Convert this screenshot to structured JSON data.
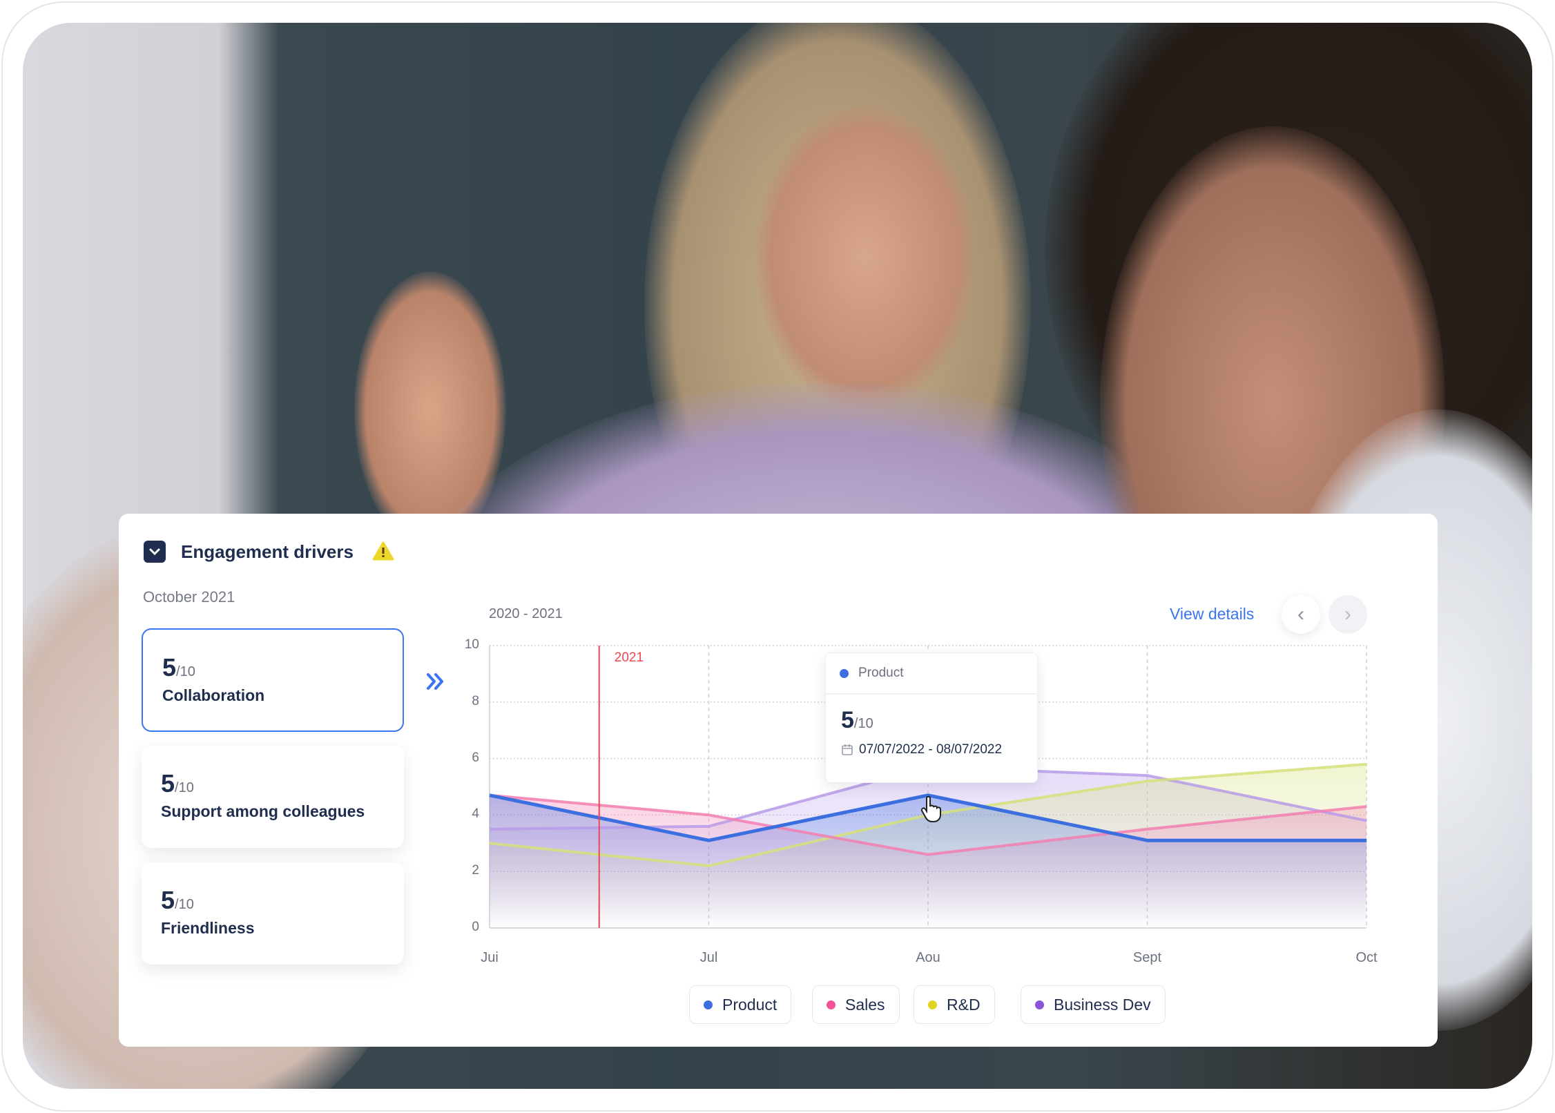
{
  "header": {
    "title": "Engagement drivers",
    "period": "October 2021"
  },
  "drivers": [
    {
      "score": "5",
      "max": "/10",
      "label": "Collaboration",
      "selected": true
    },
    {
      "score": "5",
      "max": "/10",
      "label": "Support among colleagues",
      "selected": false
    },
    {
      "score": "5",
      "max": "/10",
      "label": "Friendliness",
      "selected": false
    }
  ],
  "chart_header": {
    "range": "2020 - 2021",
    "view_details": "View details"
  },
  "tooltip": {
    "series": "Product",
    "score": "5",
    "max": "/10",
    "dates": "07/07/2022 - 08/07/2022"
  },
  "chart_data": {
    "type": "area",
    "categories": [
      "Jui",
      "Jul",
      "Aou",
      "Sept",
      "Oct"
    ],
    "ylim": [
      0,
      10
    ],
    "yticks": [
      "0",
      "2",
      "4",
      "6",
      "8",
      "10"
    ],
    "grid": true,
    "marker": {
      "label": "2021",
      "position_between": [
        "Jui",
        "Jul"
      ]
    },
    "series": [
      {
        "name": "Product",
        "color": "#3b6fe0",
        "values": [
          4.7,
          3.1,
          4.7,
          3.1,
          3.1
        ]
      },
      {
        "name": "Sales",
        "color": "#f27fb0",
        "values": [
          4.7,
          4.0,
          2.6,
          3.5,
          4.3
        ]
      },
      {
        "name": "R&D",
        "color": "#d6e07a",
        "values": [
          3.0,
          2.2,
          4.0,
          5.2,
          5.8
        ]
      },
      {
        "name": "Business Dev",
        "color": "#b79be8",
        "values": [
          3.5,
          3.6,
          5.7,
          5.4,
          3.8
        ]
      }
    ],
    "legend_position": "bottom"
  },
  "legend": [
    {
      "label": "Product",
      "color": "#3b6fe0"
    },
    {
      "label": "Sales",
      "color": "#f2539a"
    },
    {
      "label": "R&D",
      "color": "#e0d322"
    },
    {
      "label": "Business Dev",
      "color": "#8a55d6"
    }
  ]
}
